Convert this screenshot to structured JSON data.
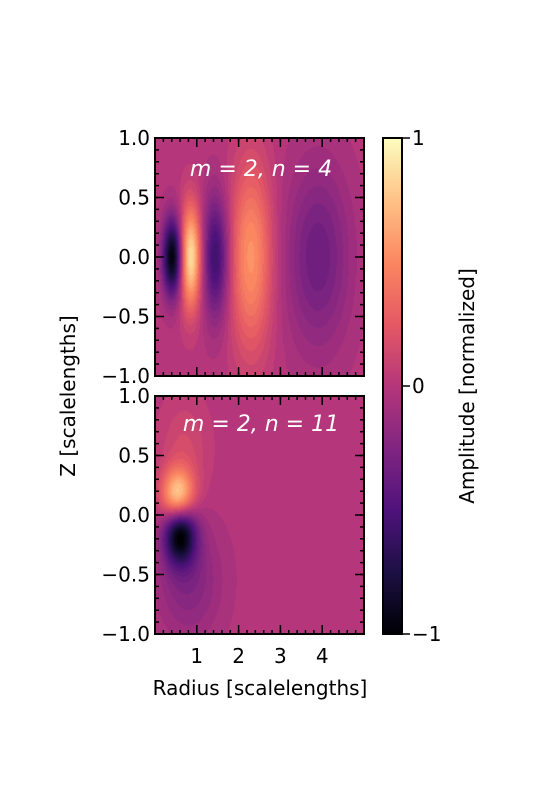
{
  "chart_data": [
    {
      "type": "heatmap",
      "title": "m = 2, n = 4",
      "xlabel": "",
      "ylabel": "Z [scalelengths]",
      "xlim": [
        0,
        5
      ],
      "ylim": [
        -1.0,
        1.0
      ],
      "x_ticks": [],
      "y_ticks": [
        1.0,
        0.5,
        0.0,
        -0.5,
        -1.0
      ],
      "y_tick_labels": [
        "1.0",
        "0.5",
        "0.0",
        "−0.5",
        "−1.0"
      ],
      "features": [
        {
          "radius": 0.42,
          "z": 0.0,
          "amplitude": -1.0,
          "sigma_r": 0.17,
          "sigma_z": 0.23
        },
        {
          "radius": 0.85,
          "z": 0.0,
          "amplitude": 0.9,
          "sigma_r": 0.18,
          "sigma_z": 0.3
        },
        {
          "radius": 1.45,
          "z": 0.0,
          "amplitude": -0.6,
          "sigma_r": 0.22,
          "sigma_z": 0.36
        },
        {
          "radius": 2.3,
          "z": 0.0,
          "amplitude": 0.55,
          "sigma_r": 0.35,
          "sigma_z": 0.55
        },
        {
          "radius": 3.9,
          "z": 0.0,
          "amplitude": -0.35,
          "sigma_r": 0.55,
          "sigma_z": 0.55
        }
      ]
    },
    {
      "type": "heatmap",
      "title": "m = 2, n = 11",
      "xlabel": "Radius [scalelengths]",
      "ylabel": "Z [scalelengths]",
      "xlim": [
        0,
        5
      ],
      "ylim": [
        -1.0,
        1.0
      ],
      "x_ticks": [
        1,
        2,
        3,
        4
      ],
      "x_tick_labels": [
        "1",
        "2",
        "3",
        "4"
      ],
      "y_ticks": [
        1.0,
        0.5,
        0.0,
        -0.5,
        -1.0
      ],
      "y_tick_labels": [
        "1.0",
        "0.5",
        "0.0",
        "−0.5",
        "−1.0"
      ],
      "features": [
        {
          "radius": 0.55,
          "z": 0.15,
          "amplitude": 0.9,
          "sigma_r": 0.27,
          "sigma_z": 0.16
        },
        {
          "radius": 0.6,
          "z": -0.15,
          "amplitude": -1.0,
          "sigma_r": 0.27,
          "sigma_z": 0.18
        },
        {
          "radius": 0.8,
          "z": -0.55,
          "amplitude": -0.25,
          "sigma_r": 0.55,
          "sigma_z": 0.35
        },
        {
          "radius": 0.7,
          "z": 0.55,
          "amplitude": 0.15,
          "sigma_r": 0.4,
          "sigma_z": 0.3
        }
      ]
    }
  ],
  "colorbar": {
    "label": "Amplitude [normalized]",
    "range": [
      -1,
      1
    ],
    "ticks": [
      1,
      0,
      -1
    ],
    "tick_labels": [
      "1",
      "0",
      "−1"
    ],
    "colormap": "magma"
  },
  "labels": {
    "title_top": "m = 2, n = 4",
    "title_bottom": "m = 2, n = 11",
    "xlabel": "Radius [scalelengths]",
    "ylabel": "Z [scalelengths]",
    "colorbar_label": "Amplitude [normalized]"
  }
}
